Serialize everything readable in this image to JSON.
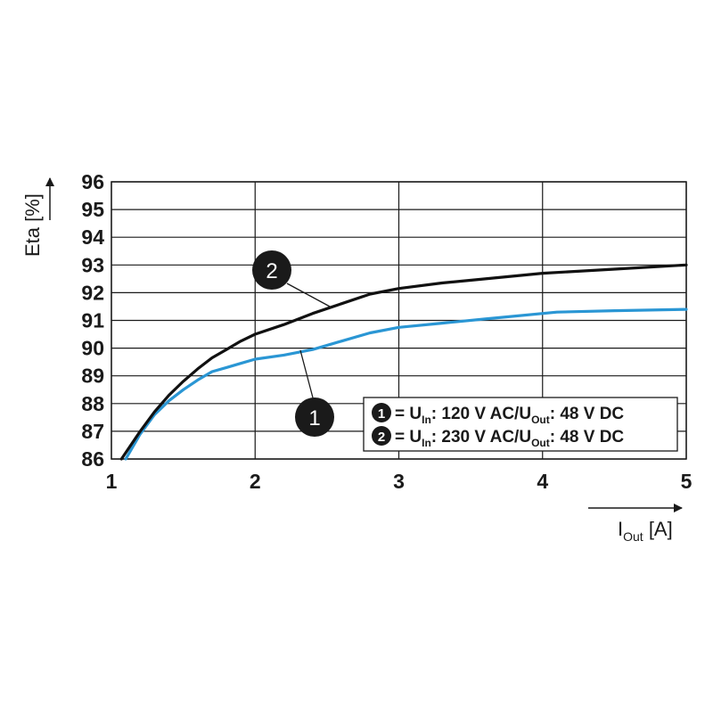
{
  "chart_data": {
    "type": "line",
    "xlim": [
      1,
      5
    ],
    "ylim": [
      86,
      96
    ],
    "x_ticks": [
      "1",
      "2",
      "3",
      "4",
      "5"
    ],
    "y_ticks": [
      "86",
      "87",
      "88",
      "89",
      "90",
      "91",
      "92",
      "93",
      "94",
      "95",
      "96"
    ],
    "xlabel": {
      "main": "I",
      "sub": "Out",
      "unit": " [A]"
    },
    "ylabel": "Eta [%]",
    "grid": true,
    "legend_position": "bottom-right",
    "series": [
      {
        "marker": "1",
        "color": "#2a96d4",
        "legend": {
          "u_in": "U",
          "in_sub": "In",
          "mid": ": 120 V AC/U",
          "out_sub": "Out",
          "end": ": 48 V DC"
        },
        "points": [
          [
            1.1,
            86.0
          ],
          [
            1.2,
            86.9
          ],
          [
            1.3,
            87.6
          ],
          [
            1.4,
            88.1
          ],
          [
            1.5,
            88.5
          ],
          [
            1.6,
            88.85
          ],
          [
            1.7,
            89.15
          ],
          [
            1.8,
            89.3
          ],
          [
            1.9,
            89.45
          ],
          [
            2.0,
            89.6
          ],
          [
            2.2,
            89.75
          ],
          [
            2.4,
            89.95
          ],
          [
            2.6,
            90.25
          ],
          [
            2.8,
            90.55
          ],
          [
            3.0,
            90.75
          ],
          [
            3.3,
            90.9
          ],
          [
            3.6,
            91.05
          ],
          [
            4.1,
            91.3
          ],
          [
            4.5,
            91.35
          ],
          [
            5.0,
            91.4
          ]
        ]
      },
      {
        "marker": "2",
        "color": "#111111",
        "legend": {
          "u_in": "U",
          "in_sub": "In",
          "mid": ": 230 V AC/U",
          "out_sub": "Out",
          "end": ": 48 V DC"
        },
        "points": [
          [
            1.07,
            86.0
          ],
          [
            1.2,
            87.0
          ],
          [
            1.3,
            87.7
          ],
          [
            1.4,
            88.3
          ],
          [
            1.5,
            88.8
          ],
          [
            1.6,
            89.25
          ],
          [
            1.7,
            89.65
          ],
          [
            1.8,
            89.95
          ],
          [
            1.9,
            90.25
          ],
          [
            2.0,
            90.5
          ],
          [
            2.2,
            90.85
          ],
          [
            2.4,
            91.25
          ],
          [
            2.6,
            91.6
          ],
          [
            2.8,
            91.95
          ],
          [
            3.0,
            92.15
          ],
          [
            3.3,
            92.35
          ],
          [
            3.6,
            92.5
          ],
          [
            4.0,
            92.7
          ],
          [
            4.5,
            92.85
          ],
          [
            5.0,
            93.0
          ]
        ]
      }
    ]
  }
}
